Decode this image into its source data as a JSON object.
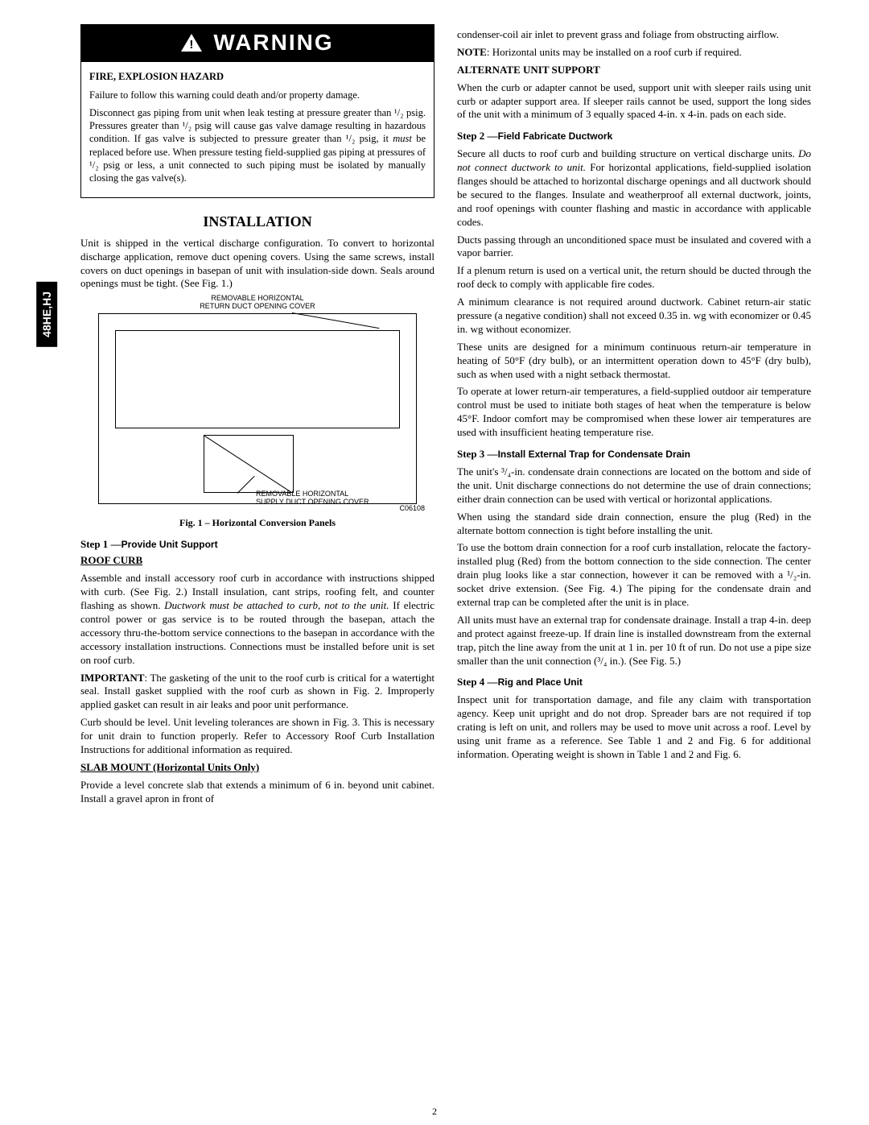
{
  "sidebar_tab": "48HE,HJ",
  "warning": {
    "header": "WARNING",
    "hazard_title": "FIRE, EXPLOSION HAZARD",
    "p1": "Failure to follow this warning could death and/or property damage.",
    "p2": "Disconnect gas piping from unit when leak testing at pressure greater than ¹/₂ psig. Pressures greater than ¹/₂ psig will cause gas valve damage resulting in hazardous condition. If gas valve is subjected to pressure greater than ¹/₂ psig, it must be replaced before use. When pressure testing field-supplied gas piping at pressures of ¹/₂ psig or less, a unit connected   to such piping must be isolated by manually closing the gas valve(s)."
  },
  "installation": {
    "title": "INSTALLATION",
    "intro": "Unit is shipped in the vertical discharge configuration. To convert to horizontal discharge application, remove duct opening covers. Using the same screws, install covers on duct openings in basepan of unit with insulation-side down. Seals around openings must be tight. (See Fig. 1.)"
  },
  "figure1": {
    "top_label": "REMOVABLE HORIZONTAL\nRETURN DUCT OPENING COVER",
    "bottom_label": "REMOVABLE HORIZONTAL\nSUPPLY DUCT OPENING COVER",
    "code": "C06108",
    "caption": "Fig. 1 – Horizontal Conversion Panels"
  },
  "step1": {
    "label": "Step 1 —",
    "title": "Provide Unit Support",
    "roof_curb_head": "ROOF CURB",
    "p1": "Assemble and install accessory roof curb in accordance with instructions shipped with curb. (See Fig. 2.) Install insulation, cant strips, roofing felt, and counter flashing as shown. Ductwork must be attached to curb, not to the unit.  If electric control power or gas service is to be routed through the basepan, attach the accessory thru-the-bottom service connections to the basepan in accordance with the accessory installation instructions. Connections must be installed before unit is set on roof curb.",
    "p2_lead": "IMPORTANT",
    "p2": ": The gasketing of the unit to the roof curb is critical for a watertight seal. Install gasket supplied with the roof curb as shown in Fig. 2. Improperly applied gasket can result in air leaks and poor unit performance.",
    "p3": "Curb should be level. Unit leveling tolerances are shown in Fig. 3. This is necessary for unit drain to function properly.    Refer to Accessory Roof Curb Installation Instructions for additional information as required.",
    "slab_head": "SLAB MOUNT (Horizontal Units Only)",
    "p4": "Provide a level concrete slab that extends a minimum of 6 in. beyond unit cabinet. Install a gravel apron in front of"
  },
  "right": {
    "p1": "condenser-coil air inlet to prevent grass and foliage from obstructing airflow.",
    "p2_lead": "NOTE",
    "p2": ": Horizontal units may be installed on a roof curb if required.",
    "alt_head": "ALTERNATE UNIT SUPPORT",
    "p3": "When the curb or adapter cannot be used, support unit with sleeper rails using unit curb or adapter support area. If sleeper rails cannot be used, support the long sides of the unit with a minimum of 3 equally spaced 4-in. x 4-in. pads on each side.",
    "step2_label": "Step 2 —",
    "step2_title": "Field Fabricate Ductwork",
    "p4": "Secure all ducts to roof curb and building structure on vertical discharge units. Do not connect ductwork to unit. For horizontal applications, field-supplied isolation flanges should be attached to horizontal discharge openings and all ductwork should be secured to the flanges. Insulate and weatherproof all external ductwork, joints, and roof openings with counter flashing and mastic in accordance with applicable codes.",
    "p5": "Ducts passing through an unconditioned space must be insulated and covered with a vapor barrier.",
    "p6": "If a plenum return is used on a vertical unit, the return should be ducted through the roof deck to comply with applicable fire codes.",
    "p7": "A minimum clearance is not required around ductwork. Cabinet return-air static pressure (a negative condition) shall not exceed 0.35 in. wg with economizer or 0.45 in. wg without economizer.",
    "p8": "These units are designed for a minimum continuous return-air temperature in heating of 50°F (dry bulb), or an intermittent operation down to 45°F (dry bulb), such as when used with a night setback thermostat.",
    "p9": "To operate at lower return-air temperatures, a field-supplied outdoor air temperature control must be used to initiate both stages of heat when the temperature is below 45°F. Indoor comfort may be compromised when these lower air temperatures are used with insufficient heating temperature rise.",
    "step3_label": "Step 3 —",
    "step3_title": "Install External Trap for Condensate Drain",
    "p10": "The unit's ³/₄-in. condensate drain connections are located on the bottom and side of the unit. Unit discharge connections do not determine the use of drain connections; either drain connection can be used with vertical or horizontal applications.",
    "p11": "When using the standard side drain connection, ensure the plug (Red) in the alternate bottom connection is tight before   installing the unit.",
    "p12": "To use the bottom drain connection for a roof curb installation, relocate the factory-installed plug (Red) from the bottom connection to the side connection. The center drain plug looks like a star connection, however it can be removed with a ¹/₂-in. socket drive extension. (See Fig. 4.) The piping for the condensate drain and external trap can be completed after the unit is in place.",
    "p13": "All units must have an external trap for condensate drainage. Install a trap 4-in. deep and protect against freeze-up. If drain line is installed downstream from the external trap, pitch the line away from the unit at 1 in. per 10 ft of run. Do not use a pipe size smaller than the unit connection (³/₄ in.). (See Fig. 5.)",
    "step4_label": "Step 4 —",
    "step4_title": "Rig and Place Unit",
    "p14": "Inspect unit for transportation damage, and file any claim with transportation agency. Keep unit upright and do not drop. Spreader bars are not required if top crating is left on unit, and rollers may be used to move unit across a roof. Level by using unit frame as a reference. See Table 1 and 2 and Fig. 6 for additional information. Operating weight is shown in Table 1 and 2 and Fig. 6."
  },
  "page_number": "2"
}
